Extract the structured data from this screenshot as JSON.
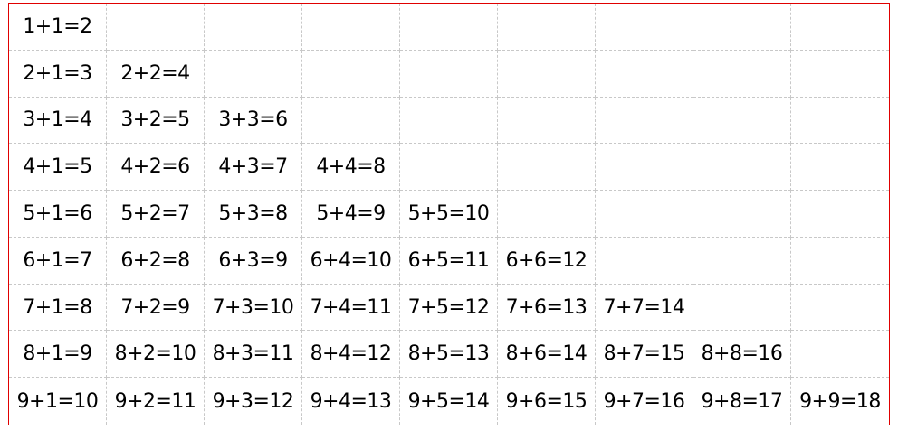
{
  "table": {
    "rows": [
      [
        "1+1=2"
      ],
      [
        "2+1=3",
        "2+2=4"
      ],
      [
        "3+1=4",
        "3+2=5",
        "3+3=6"
      ],
      [
        "4+1=5",
        "4+2=6",
        "4+3=7",
        "4+4=8"
      ],
      [
        "5+1=6",
        "5+2=7",
        "5+3=8",
        "5+4=9",
        "5+5=10"
      ],
      [
        "6+1=7",
        "6+2=8",
        "6+3=9",
        "6+4=10",
        "6+5=11",
        "6+6=12"
      ],
      [
        "7+1=8",
        "7+2=9",
        "7+3=10",
        "7+4=11",
        "7+5=12",
        "7+6=13",
        "7+7=14"
      ],
      [
        "8+1=9",
        "8+2=10",
        "8+3=11",
        "8+4=12",
        "8+5=13",
        "8+6=14",
        "8+7=15",
        "8+8=16"
      ],
      [
        "9+1=10",
        "9+2=11",
        "9+3=12",
        "9+4=13",
        "9+5=14",
        "9+6=15",
        "9+7=16",
        "9+8=17",
        "9+9=18"
      ]
    ],
    "border_color": "#e00000",
    "grid_line_color": "#c8c8c8"
  }
}
